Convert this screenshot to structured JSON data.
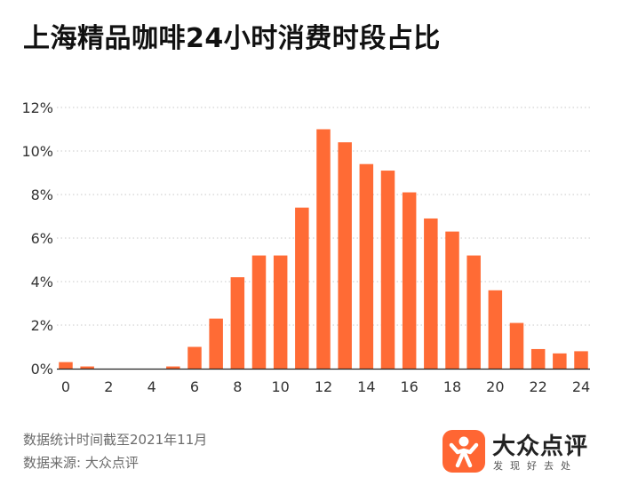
{
  "title": "上海精品咖啡24小时消费时段占比",
  "footnotes": {
    "date_note": "数据统计时间截至2021年11月",
    "source": "数据来源: 大众点评"
  },
  "brand": {
    "name": "大众点评",
    "slogan": "发现好去处",
    "logo_icon": "person-arms-up-icon",
    "color": "#ff6633"
  },
  "chart_data": {
    "type": "bar",
    "title": "上海精品咖啡24小时消费时段占比",
    "xlabel": "",
    "ylabel": "",
    "x": [
      0,
      1,
      2,
      3,
      4,
      5,
      6,
      7,
      8,
      9,
      10,
      11,
      12,
      13,
      14,
      15,
      16,
      17,
      18,
      19,
      20,
      21,
      22,
      23,
      24
    ],
    "values": [
      0.3,
      0.1,
      0,
      0,
      0,
      0.1,
      1.0,
      2.3,
      4.2,
      5.2,
      5.2,
      7.4,
      11.0,
      10.4,
      9.4,
      9.1,
      8.1,
      6.9,
      6.3,
      5.2,
      3.6,
      2.1,
      0.9,
      0.7,
      0.8
    ],
    "xticks": [
      "0",
      "2",
      "4",
      "6",
      "8",
      "10",
      "12",
      "14",
      "16",
      "18",
      "20",
      "22",
      "24"
    ],
    "yticks": [
      "0%",
      "2%",
      "4%",
      "6%",
      "8%",
      "10%",
      "12%"
    ],
    "ylim": [
      0,
      12
    ],
    "xlim": [
      0,
      24
    ],
    "bar_color": "#ff6b35",
    "grid": "horizontal dotted",
    "legend": "none"
  }
}
